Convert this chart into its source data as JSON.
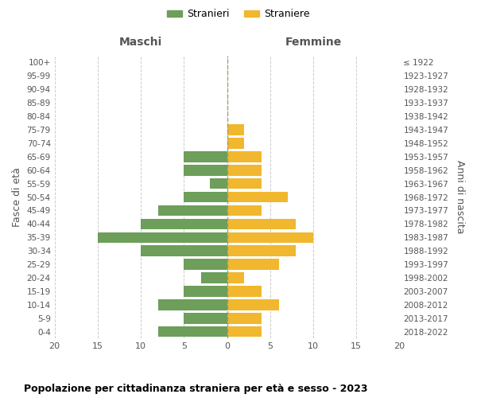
{
  "age_groups": [
    "100+",
    "95-99",
    "90-94",
    "85-89",
    "80-84",
    "75-79",
    "70-74",
    "65-69",
    "60-64",
    "55-59",
    "50-54",
    "45-49",
    "40-44",
    "35-39",
    "30-34",
    "25-29",
    "20-24",
    "15-19",
    "10-14",
    "5-9",
    "0-4"
  ],
  "birth_years": [
    "≤ 1922",
    "1923-1927",
    "1928-1932",
    "1933-1937",
    "1938-1942",
    "1943-1947",
    "1948-1952",
    "1953-1957",
    "1958-1962",
    "1963-1967",
    "1968-1972",
    "1973-1977",
    "1978-1982",
    "1983-1987",
    "1988-1992",
    "1993-1997",
    "1998-2002",
    "2003-2007",
    "2008-2012",
    "2013-2017",
    "2018-2022"
  ],
  "maschi": [
    0,
    0,
    0,
    0,
    0,
    0,
    0,
    5,
    5,
    2,
    5,
    8,
    10,
    15,
    10,
    5,
    3,
    5,
    8,
    5,
    8
  ],
  "femmine": [
    0,
    0,
    0,
    0,
    0,
    2,
    2,
    4,
    4,
    4,
    7,
    4,
    8,
    10,
    8,
    6,
    2,
    4,
    6,
    4,
    4
  ],
  "maschi_color": "#6d9e5a",
  "femmine_color": "#f0b72f",
  "background_color": "#ffffff",
  "grid_color": "#cccccc",
  "center_line_color": "#999966",
  "title": "Popolazione per cittadinanza straniera per età e sesso - 2023",
  "xlabel_left": "Maschi",
  "xlabel_right": "Femmine",
  "ylabel_left": "Fasce di età",
  "ylabel_right": "Anni di nascita",
  "legend_maschi": "Stranieri",
  "legend_femmine": "Straniere",
  "xlim": 20,
  "bar_height": 0.8
}
